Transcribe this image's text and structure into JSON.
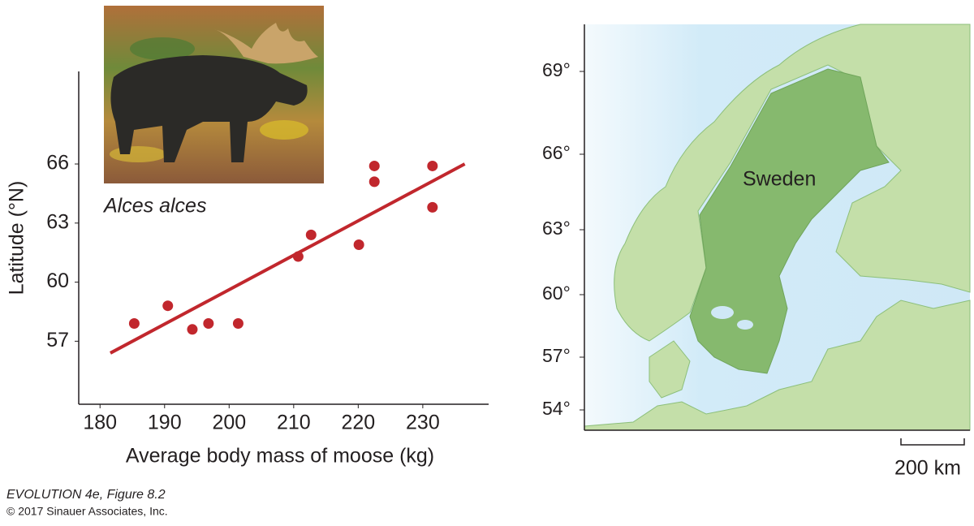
{
  "chart_data": {
    "type": "scatter",
    "xlabel": "Average body mass of moose (kg)",
    "ylabel": "Latitude (°N)",
    "x": [
      185.3,
      190.5,
      194.3,
      196.8,
      201.4,
      210.7,
      212.7,
      220.1,
      222.5,
      222.5,
      231.5,
      231.5
    ],
    "values": [
      57.9,
      58.8,
      57.6,
      57.9,
      57.9,
      61.3,
      62.4,
      61.9,
      65.9,
      65.1,
      65.9,
      63.8
    ],
    "color": "#c1272d",
    "trend_line": {
      "x": [
        181.6,
        236.5
      ],
      "y": [
        56.4,
        66.0
      ]
    },
    "xlim": [
      176.7,
      240.2
    ],
    "ylim": [
      53.8,
      70.7
    ],
    "xticks": [
      180,
      190,
      200,
      210,
      220,
      230
    ],
    "yticks": [
      57,
      60,
      63,
      66
    ],
    "photo_caption": "Alces alces"
  },
  "map": {
    "latitude_labels": [
      "69°",
      "66°",
      "63°",
      "60°",
      "57°",
      "54°"
    ],
    "country_label": "Sweden",
    "scale_label": "200 km"
  },
  "credit": {
    "figure": "EVOLUTION 4e, Figure 8.2",
    "copyright": "© 2017 Sinauer Associates, Inc."
  }
}
